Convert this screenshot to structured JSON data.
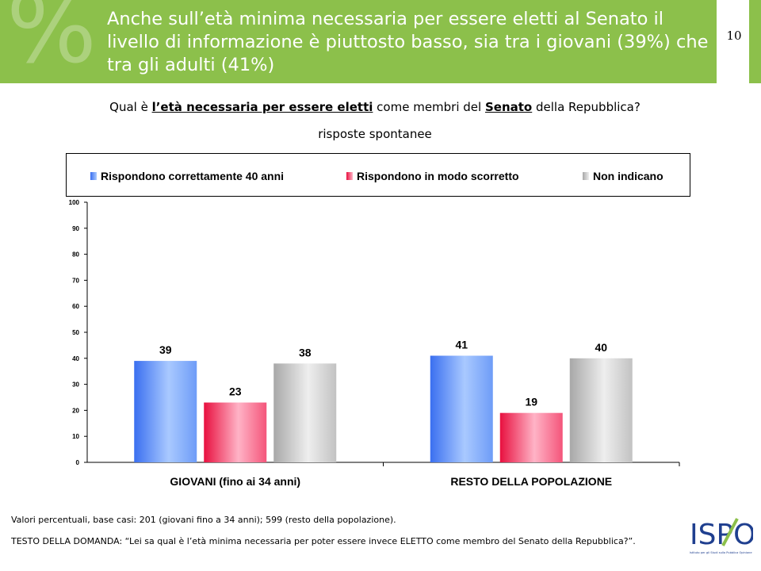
{
  "header": {
    "title": "Anche sull’età minima necessaria per essere eletti al Senato il livello di informazione è piuttosto basso, sia tra i giovani (39%) che tra gli adulti (41%)",
    "page_number": "10"
  },
  "question": {
    "prefix": "Qual è ",
    "bold1": "l’età necessaria per essere eletti",
    "middle": " come membri del ",
    "bold2": "Senato",
    "suffix": " della Repubblica?"
  },
  "subtitle": "risposte spontanee",
  "legend": [
    "Rispondono correttamente 40 anni",
    "Rispondono in modo scorretto",
    "Non indicano"
  ],
  "colors": {
    "header": "#8cc04b",
    "correct": "#5b8df5",
    "wrong": "#f0345e",
    "none": "#c8c8c8"
  },
  "chart_data": {
    "type": "bar",
    "categories": [
      "GIOVANI (fino ai 34 anni)",
      "RESTO DELLA POPOLAZIONE"
    ],
    "series": [
      {
        "name": "Rispondono correttamente 40 anni",
        "values": [
          39,
          41
        ]
      },
      {
        "name": "Rispondono in modo scorretto",
        "values": [
          23,
          19
        ]
      },
      {
        "name": "Non indicano",
        "values": [
          38,
          40
        ]
      }
    ],
    "ylim": [
      0,
      100
    ],
    "yticks": [
      0,
      10,
      20,
      30,
      40,
      50,
      60,
      70,
      80,
      90,
      100
    ],
    "legend_position": "top",
    "grid": false
  },
  "footnote": "Valori percentuali, base casi: 201 (giovani fino a 34 anni); 599 (resto della popolazione).",
  "question_text": "TESTO DELLA DOMANDA: “Lei sa qual è l’età minima necessaria per poter essere invece ELETTO come membro del Senato della Repubblica?”.",
  "logo": {
    "text": "ISPO",
    "tagline": "Istituto per gli Studi sulla Pubblica Opinione"
  }
}
